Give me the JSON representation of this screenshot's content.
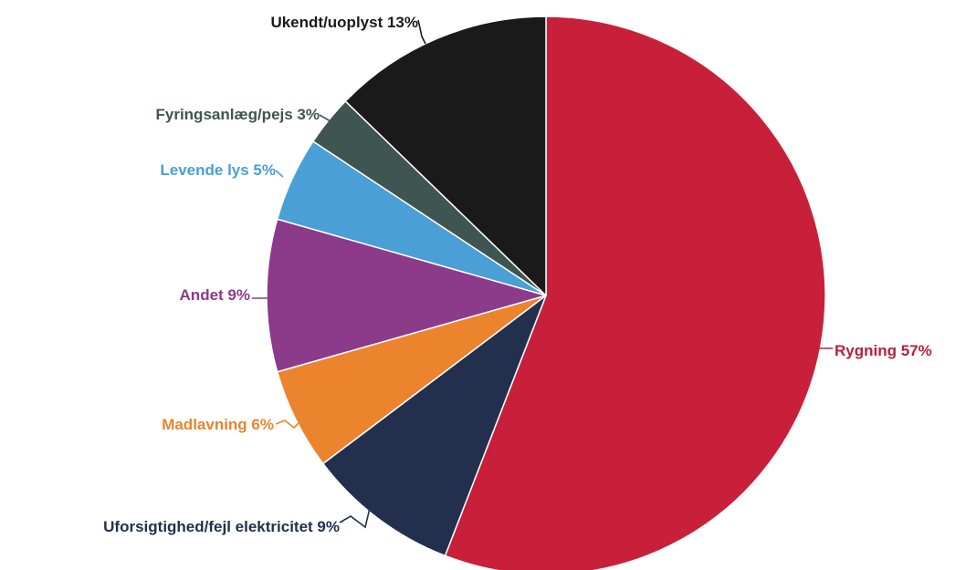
{
  "chart_data": {
    "type": "pie",
    "slices": [
      {
        "label": "Rygning 57%",
        "value": 57,
        "color": "#c8203a"
      },
      {
        "label": "Uforsigtighed/fejl elektricitet 9%",
        "value": 9,
        "color": "#22304d"
      },
      {
        "label": "Madlavning 6%",
        "value": 6,
        "color": "#ec842e"
      },
      {
        "label": "Andet 9%",
        "value": 9,
        "color": "#8c3a8a"
      },
      {
        "label": "Levende lys 5%",
        "value": 5,
        "color": "#4a9fd6"
      },
      {
        "label": "Fyringsanlæg/pejs 3%",
        "value": 3,
        "color": "#3f5552"
      },
      {
        "label": "Ukendt/uoplyst 13%",
        "value": 13,
        "color": "#1a1a1a"
      }
    ],
    "label_colors": [
      "#b8203a",
      "#22304d",
      "#e8842e",
      "#8c3a8a",
      "#4a9fd6",
      "#3f5552",
      "#1a1a1a"
    ]
  }
}
